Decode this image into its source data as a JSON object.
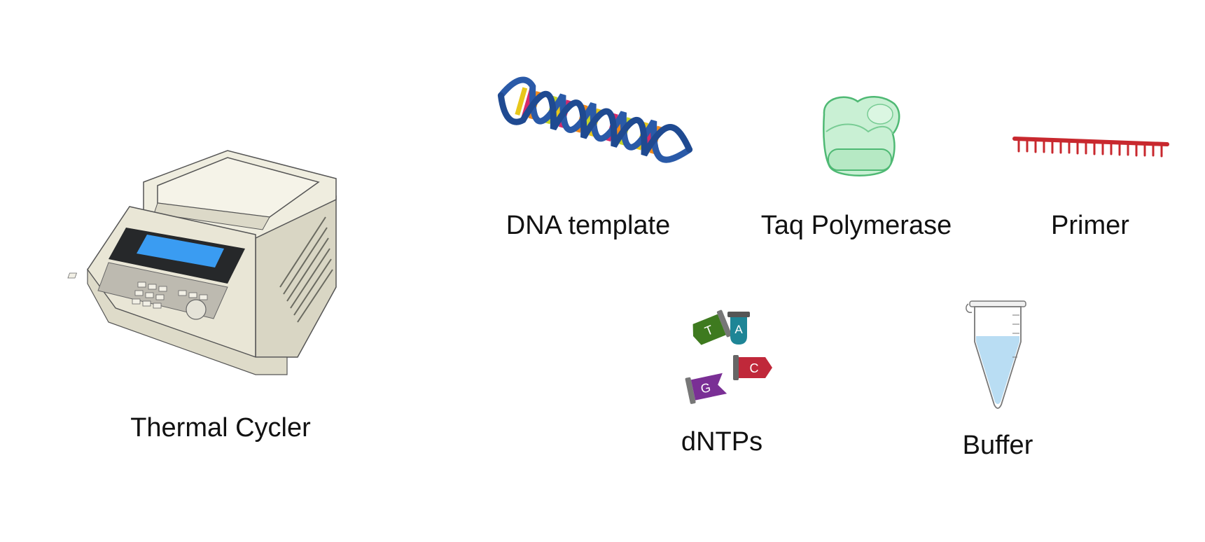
{
  "items": {
    "thermal_cycler": {
      "label": "Thermal Cycler",
      "icon": "thermal-cycler-icon"
    },
    "dna_template": {
      "label": "DNA template",
      "icon": "dna-helix-icon"
    },
    "taq_polymerase": {
      "label": "Taq Polymerase",
      "icon": "enzyme-icon"
    },
    "primer": {
      "label": "Primer",
      "icon": "primer-icon"
    },
    "dntps": {
      "label": "dNTPs",
      "icon": "nucleotides-icon",
      "letters": {
        "t": "T",
        "a": "A",
        "c": "C",
        "g": "G"
      }
    },
    "buffer": {
      "label": "Buffer",
      "icon": "microcentrifuge-tube-icon"
    }
  },
  "colors": {
    "cycler_body": "#e9e6d6",
    "cycler_screen": "#3a9cf2",
    "dna_backbone": "#2a5aa8",
    "enzyme": "#c9f0d4",
    "primer": "#c8282e",
    "t_color": "#3e7a1f",
    "a_color": "#1e8596",
    "c_color": "#c0283a",
    "g_color": "#7a2f95",
    "buffer_liquid": "#b9ddf3"
  }
}
